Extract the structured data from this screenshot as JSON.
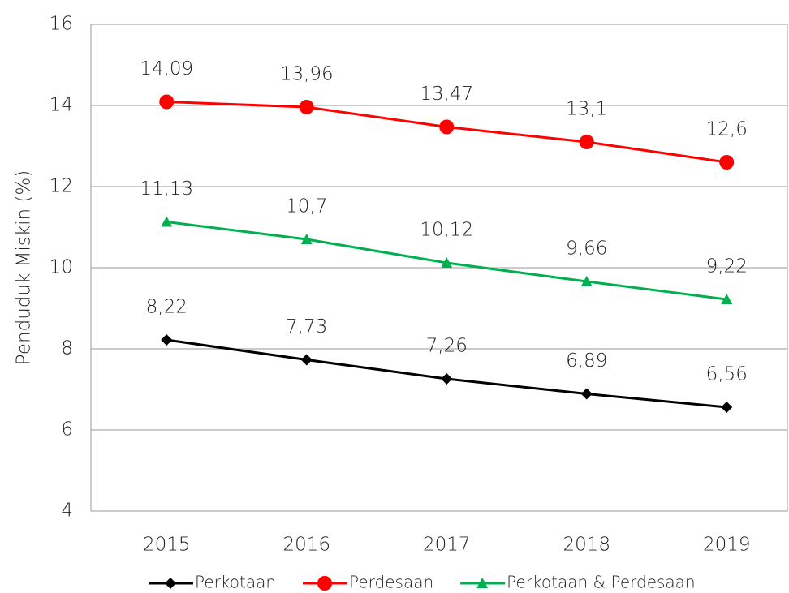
{
  "chart_data": {
    "type": "line",
    "y_label": "Penduduk Miskin (%)",
    "categories": [
      "2015",
      "2016",
      "2017",
      "2018",
      "2019"
    ],
    "series": [
      {
        "name": "Perkotaan",
        "color": "#000000",
        "marker": "diamond",
        "values": [
          8.22,
          7.73,
          7.26,
          6.89,
          6.56
        ],
        "value_labels": [
          "8,22",
          "7,73",
          "7,26",
          "6,89",
          "6,56"
        ]
      },
      {
        "name": "Perdesaan",
        "color": "#ff0000",
        "marker": "circle",
        "values": [
          14.09,
          13.96,
          13.47,
          13.1,
          12.6
        ],
        "value_labels": [
          "14,09",
          "13,96",
          "13,47",
          "13,1",
          "12,6"
        ]
      },
      {
        "name": "Perkotaan & Perdesaan",
        "color": "#00b050",
        "marker": "triangle",
        "values": [
          11.13,
          10.7,
          10.12,
          9.66,
          9.22
        ],
        "value_labels": [
          "11,13",
          "10,7",
          "10,12",
          "9,66",
          "9,22"
        ]
      }
    ],
    "ylim": [
      4,
      16
    ],
    "yticks": [
      4,
      6,
      8,
      10,
      12,
      14,
      16
    ],
    "grid": true,
    "legend": "bottom"
  }
}
